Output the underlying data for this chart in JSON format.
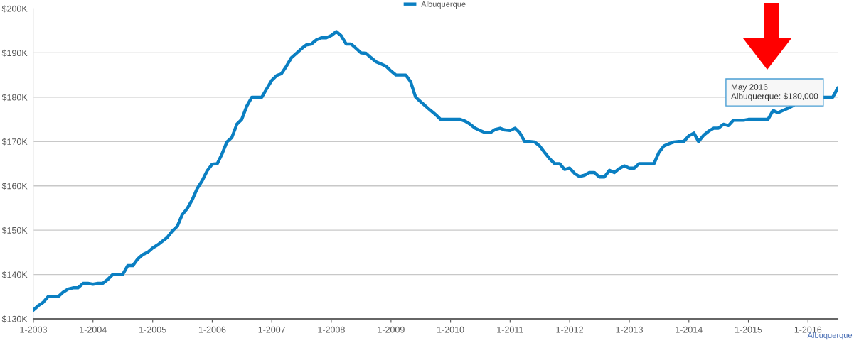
{
  "chart_data": {
    "type": "line",
    "x": [
      "2003-01",
      "2003-02",
      "2003-03",
      "2003-04",
      "2003-05",
      "2003-06",
      "2003-07",
      "2003-08",
      "2003-09",
      "2003-10",
      "2003-11",
      "2003-12",
      "2004-01",
      "2004-02",
      "2004-03",
      "2004-04",
      "2004-05",
      "2004-06",
      "2004-07",
      "2004-08",
      "2004-09",
      "2004-10",
      "2004-11",
      "2004-12",
      "2005-01",
      "2005-02",
      "2005-03",
      "2005-04",
      "2005-05",
      "2005-06",
      "2005-07",
      "2005-08",
      "2005-09",
      "2005-10",
      "2005-11",
      "2005-12",
      "2006-01",
      "2006-02",
      "2006-03",
      "2006-04",
      "2006-05",
      "2006-06",
      "2006-07",
      "2006-08",
      "2006-09",
      "2006-10",
      "2006-11",
      "2006-12",
      "2007-01",
      "2007-02",
      "2007-03",
      "2007-04",
      "2007-05",
      "2007-06",
      "2007-07",
      "2007-08",
      "2007-09",
      "2007-10",
      "2007-11",
      "2007-12",
      "2008-01",
      "2008-02",
      "2008-03",
      "2008-04",
      "2008-05",
      "2008-06",
      "2008-07",
      "2008-08",
      "2008-09",
      "2008-10",
      "2008-11",
      "2008-12",
      "2009-01",
      "2009-02",
      "2009-03",
      "2009-04",
      "2009-05",
      "2009-06",
      "2009-07",
      "2009-08",
      "2009-09",
      "2009-10",
      "2009-11",
      "2009-12",
      "2010-01",
      "2010-02",
      "2010-03",
      "2010-04",
      "2010-05",
      "2010-06",
      "2010-07",
      "2010-08",
      "2010-09",
      "2010-10",
      "2010-11",
      "2010-12",
      "2011-01",
      "2011-02",
      "2011-03",
      "2011-04",
      "2011-05",
      "2011-06",
      "2011-07",
      "2011-08",
      "2011-09",
      "2011-10",
      "2011-11",
      "2011-12",
      "2012-01",
      "2012-02",
      "2012-03",
      "2012-04",
      "2012-05",
      "2012-06",
      "2012-07",
      "2012-08",
      "2012-09",
      "2012-10",
      "2012-11",
      "2012-12",
      "2013-01",
      "2013-02",
      "2013-03",
      "2013-04",
      "2013-05",
      "2013-06",
      "2013-07",
      "2013-08",
      "2013-09",
      "2013-10",
      "2013-11",
      "2013-12",
      "2014-01",
      "2014-02",
      "2014-03",
      "2014-04",
      "2014-05",
      "2014-06",
      "2014-07",
      "2014-08",
      "2014-09",
      "2014-10",
      "2014-11",
      "2014-12",
      "2015-01",
      "2015-02",
      "2015-03",
      "2015-04",
      "2015-05",
      "2015-06",
      "2015-07",
      "2015-08",
      "2015-09",
      "2015-10",
      "2015-11",
      "2015-12",
      "2016-01",
      "2016-02",
      "2016-03",
      "2016-04",
      "2016-05",
      "2016-06",
      "2016-07"
    ],
    "series": [
      {
        "name": "Albuquerque",
        "color": "#0a7fc2",
        "values": [
          132000,
          133000,
          133700,
          135000,
          135000,
          135000,
          136000,
          136700,
          137000,
          137000,
          138000,
          138000,
          137800,
          138000,
          138000,
          138900,
          140000,
          140000,
          140000,
          142000,
          142000,
          143500,
          144500,
          145000,
          146000,
          146700,
          147500,
          148400,
          149800,
          150900,
          153500,
          154900,
          156900,
          159400,
          161200,
          163400,
          164900,
          165000,
          167100,
          169900,
          170900,
          173900,
          175000,
          178000,
          180000,
          180000,
          180000,
          181900,
          183800,
          184900,
          185300,
          187000,
          188900,
          189900,
          190900,
          191800,
          192000,
          192900,
          193400,
          193400,
          193900,
          194800,
          193900,
          192000,
          192000,
          191000,
          190000,
          189900,
          188900,
          188000,
          187500,
          187000,
          185900,
          185000,
          185000,
          185000,
          183500,
          180000,
          179000,
          178000,
          177000,
          176100,
          175000,
          175000,
          175000,
          175000,
          175000,
          174600,
          173900,
          173000,
          172500,
          172000,
          172000,
          172700,
          173000,
          172600,
          172500,
          173000,
          172000,
          170000,
          170000,
          169900,
          169000,
          167500,
          166100,
          165000,
          165000,
          163700,
          164000,
          162800,
          162100,
          162400,
          163000,
          163000,
          162000,
          162000,
          163500,
          163000,
          163900,
          164500,
          164000,
          164000,
          165000,
          165000,
          165000,
          165000,
          167500,
          169000,
          169500,
          169900,
          170000,
          170000,
          171300,
          171900,
          170000,
          171400,
          172300,
          173000,
          173000,
          173900,
          173600,
          174800,
          174800,
          174800,
          175000,
          175000,
          175000,
          175000,
          175000,
          177000,
          176500,
          177000,
          177500,
          178100,
          null,
          null,
          null,
          null,
          null,
          180000,
          180000,
          180000,
          182000
        ]
      }
    ],
    "xlim": [
      "2003-01",
      "2016-07"
    ],
    "xticks": [
      {
        "value": "2003-01",
        "label": "1-2003"
      },
      {
        "value": "2004-01",
        "label": "1-2004"
      },
      {
        "value": "2005-01",
        "label": "1-2005"
      },
      {
        "value": "2006-01",
        "label": "1-2006"
      },
      {
        "value": "2007-01",
        "label": "1-2007"
      },
      {
        "value": "2008-01",
        "label": "1-2008"
      },
      {
        "value": "2009-01",
        "label": "1-2009"
      },
      {
        "value": "2010-01",
        "label": "1-2010"
      },
      {
        "value": "2011-01",
        "label": "1-2011"
      },
      {
        "value": "2012-01",
        "label": "1-2012"
      },
      {
        "value": "2013-01",
        "label": "1-2013"
      },
      {
        "value": "2014-01",
        "label": "1-2014"
      },
      {
        "value": "2015-01",
        "label": "1-2015"
      },
      {
        "value": "2016-01",
        "label": "1-2016"
      }
    ],
    "ylim": [
      130000,
      200000
    ],
    "yticks": [
      {
        "value": 130000,
        "label": "$130K"
      },
      {
        "value": 140000,
        "label": "$140K"
      },
      {
        "value": 150000,
        "label": "$150K"
      },
      {
        "value": 160000,
        "label": "$160K"
      },
      {
        "value": 170000,
        "label": "$170K"
      },
      {
        "value": 180000,
        "label": "$180K"
      },
      {
        "value": 190000,
        "label": "$190K"
      },
      {
        "value": 200000,
        "label": "$200K"
      }
    ],
    "grid": "y",
    "legend": "top",
    "marker": "none",
    "line_style": "solid",
    "annotations": [
      "May 2016\nAlbuquerque: $180,000",
      "Albuquerque"
    ]
  }
}
